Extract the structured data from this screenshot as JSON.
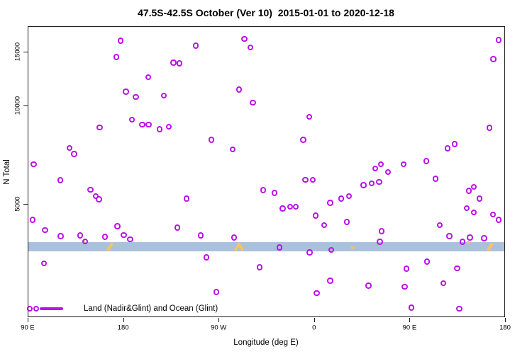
{
  "chart_data": {
    "type": "scatter",
    "title": "47.5S-42.5S October (Ver 10)  2015-01-01 to 2020-12-18",
    "xlabel": "Longitude (deg E)",
    "ylabel": "N Total",
    "x_axis": {
      "note": "longitude continues eastward from 90E through the dateline and back to 180",
      "range": [
        90,
        540
      ],
      "ticks": [
        {
          "pos": 90,
          "label": "90 E"
        },
        {
          "pos": 180,
          "label": "180"
        },
        {
          "pos": 270,
          "label": "90 W"
        },
        {
          "pos": 360,
          "label": "0"
        },
        {
          "pos": 450,
          "label": "90 E"
        },
        {
          "pos": 540,
          "label": "180"
        }
      ]
    },
    "y_axis": {
      "scale": "log",
      "range_approx": [
        2250,
        18400
      ],
      "ticks": [
        {
          "value": 5000,
          "label": "5000"
        },
        {
          "value": 10000,
          "label": "10000"
        },
        {
          "value": 15000,
          "label": "15000"
        }
      ]
    },
    "legend": {
      "label": "Land (Nadir&Glint) and Ocean (Glint)",
      "position": "bottom-left"
    },
    "colors": {
      "marker": "#bb11e8",
      "band": "#a9c1dc",
      "orange_marks": "#f5c36a",
      "axis": "#1c1c1c"
    },
    "band": {
      "n_top": 3830,
      "n_bottom": 3580
    },
    "orange_marks": [
      {
        "pos": 167.5,
        "n": 3700,
        "kind": "slash"
      },
      {
        "pos": 288.0,
        "n": 3700,
        "kind": "slash"
      },
      {
        "pos": 290.5,
        "n": 3700,
        "kind": "backslash"
      },
      {
        "pos": 525.5,
        "n": 3700,
        "kind": "slash"
      },
      {
        "pos": 142.8,
        "n": 3840,
        "kind": "speck"
      },
      {
        "pos": 396.0,
        "n": 3680,
        "kind": "speck"
      },
      {
        "pos": 505.0,
        "n": 3825,
        "kind": "speck"
      }
    ],
    "series": [
      {
        "name": "Land (Nadir&Glint) and Ocean (Glint)",
        "marker": "open-circle",
        "points": [
          [
            177.6,
            16260
          ],
          [
            248.5,
            15660
          ],
          [
            294.6,
            16520
          ],
          [
            300.0,
            15490
          ],
          [
            534.0,
            16350
          ],
          [
            529.3,
            14140
          ],
          [
            173.6,
            14370
          ],
          [
            227.7,
            13770
          ],
          [
            233.1,
            13700
          ],
          [
            203.7,
            12360
          ],
          [
            182.9,
            11050
          ],
          [
            192.3,
            10630
          ],
          [
            218.4,
            10750
          ],
          [
            289.3,
            11230
          ],
          [
            302.6,
            10190
          ],
          [
            355.5,
            9210
          ],
          [
            158.2,
            8550
          ],
          [
            188.3,
            9030
          ],
          [
            198.3,
            8720
          ],
          [
            204.3,
            8720
          ],
          [
            214.4,
            8430
          ],
          [
            223.1,
            8590
          ],
          [
            263.2,
            7820
          ],
          [
            525.3,
            8510
          ],
          [
            283.3,
            7330
          ],
          [
            129.5,
            7400
          ],
          [
            134.1,
            7080
          ],
          [
            96.0,
            6600
          ],
          [
            485.9,
            7370
          ],
          [
            492.6,
            7590
          ],
          [
            465.8,
            6740
          ],
          [
            350.1,
            7820
          ],
          [
            352.1,
            5920
          ],
          [
            358.8,
            5920
          ],
          [
            312.0,
            5500
          ],
          [
            239.8,
            5180
          ],
          [
            120.8,
            5900
          ],
          [
            149.5,
            5520
          ],
          [
            154.2,
            5280
          ],
          [
            157.5,
            5160
          ],
          [
            375.5,
            5030
          ],
          [
            385.6,
            5180
          ],
          [
            392.9,
            5280
          ],
          [
            330.7,
            4830
          ],
          [
            337.4,
            4900
          ],
          [
            342.8,
            4900
          ],
          [
            322.7,
            5390
          ],
          [
            417.7,
            6410
          ],
          [
            423.0,
            6600
          ],
          [
            444.4,
            6600
          ],
          [
            406.9,
            5690
          ],
          [
            414.3,
            5770
          ],
          [
            421.6,
            5830
          ],
          [
            429.7,
            6250
          ],
          [
            474.5,
            5950
          ],
          [
            505.9,
            5470
          ],
          [
            510.6,
            5630
          ],
          [
            516.0,
            5180
          ],
          [
            94.7,
            4460
          ],
          [
            106.7,
            4160
          ],
          [
            121.4,
            3980
          ],
          [
            139.5,
            4000
          ],
          [
            144.2,
            3840
          ],
          [
            162.9,
            3960
          ],
          [
            174.9,
            4270
          ],
          [
            180.9,
            4010
          ],
          [
            186.9,
            3900
          ],
          [
            231.1,
            4230
          ],
          [
            253.2,
            4000
          ],
          [
            258.5,
            3430
          ],
          [
            284.6,
            3940
          ],
          [
            369.5,
            4300
          ],
          [
            361.5,
            4600
          ],
          [
            390.9,
            4400
          ],
          [
            423.7,
            4120
          ],
          [
            327.4,
            3680
          ],
          [
            356.1,
            3550
          ],
          [
            376.2,
            3610
          ],
          [
            422.3,
            3830
          ],
          [
            478.5,
            4300
          ],
          [
            503.9,
            4850
          ],
          [
            510.6,
            4710
          ],
          [
            528.7,
            4640
          ],
          [
            534.0,
            4460
          ],
          [
            507.2,
            3940
          ],
          [
            499.9,
            3830
          ],
          [
            487.8,
            3980
          ],
          [
            520.6,
            3920
          ],
          [
            105.4,
            3290
          ],
          [
            267.9,
            2690
          ],
          [
            308.7,
            3200
          ],
          [
            362.8,
            2670
          ],
          [
            375.5,
            2910
          ],
          [
            411.6,
            2810
          ],
          [
            447.1,
            3170
          ],
          [
            445.7,
            2790
          ],
          [
            451.8,
            2410
          ],
          [
            466.5,
            3330
          ],
          [
            481.9,
            2860
          ],
          [
            495.2,
            3180
          ],
          [
            497.2,
            2390
          ]
        ]
      }
    ]
  }
}
